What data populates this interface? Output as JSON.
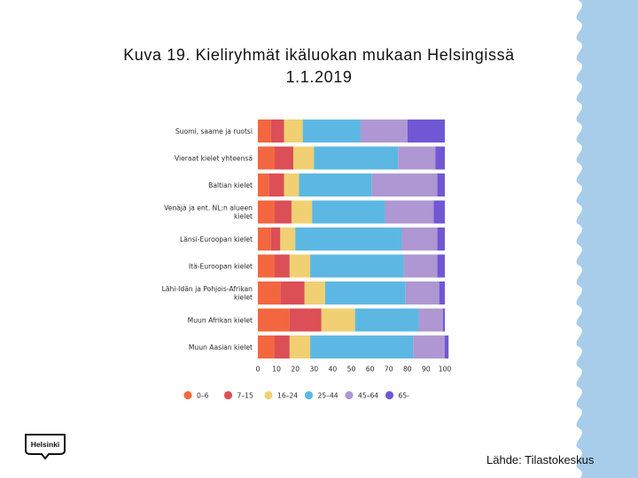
{
  "slide": {
    "title_line1": "Kuva 19. Kieliryhmät ikäluokan mukaan Helsingissä",
    "title_line2": "1.1.2019",
    "source": "Lähde: Tilastokeskus",
    "logo_text": "Helsinki",
    "accent_color": "#a8cdea"
  },
  "chart_data": {
    "type": "bar",
    "orientation": "horizontal",
    "stacked": true,
    "title": "",
    "xlabel": "",
    "ylabel": "",
    "xlim": [
      0,
      100
    ],
    "xticks": [
      0,
      10,
      20,
      30,
      40,
      50,
      60,
      70,
      80,
      90,
      100
    ],
    "grid": false,
    "legend_position": "bottom",
    "categories": [
      [
        "Suomi, saame ja ruotsi"
      ],
      [
        "Vieraat kielet yhteensä"
      ],
      [
        "Baltian kielet"
      ],
      [
        "Venäjä ja ent. NL:n alueen",
        "kielet"
      ],
      [
        "Länsi-Euroopan kielet"
      ],
      [
        "Itä-Euroopan kielet"
      ],
      [
        "Lähi-Idän ja Pohjois-Afrikan",
        "kielet"
      ],
      [
        "Muun Afrikan kielet"
      ],
      [
        "Muun Aasian kielet"
      ]
    ],
    "series": [
      {
        "name": "0–6",
        "color": "#f2673f",
        "values": [
          7,
          9,
          6,
          9,
          7,
          9,
          12,
          17,
          9
        ]
      },
      {
        "name": "7–15",
        "color": "#dc4f56",
        "values": [
          7,
          10,
          8,
          9,
          5,
          8,
          13,
          17,
          8
        ]
      },
      {
        "name": "16–24",
        "color": "#f0d072",
        "values": [
          10,
          11,
          8,
          11,
          8,
          11,
          11,
          18,
          11
        ]
      },
      {
        "name": "25–44",
        "color": "#5cb8e3",
        "values": [
          31,
          45,
          39,
          39,
          57,
          50,
          43,
          34,
          55
        ]
      },
      {
        "name": "45–64",
        "color": "#ae97d2",
        "values": [
          25,
          20,
          35,
          26,
          19,
          18,
          18,
          13,
          17
        ]
      },
      {
        "name": "65-",
        "color": "#7157d4",
        "values": [
          20,
          5,
          4,
          6,
          4,
          4,
          3,
          1,
          2
        ]
      }
    ]
  }
}
